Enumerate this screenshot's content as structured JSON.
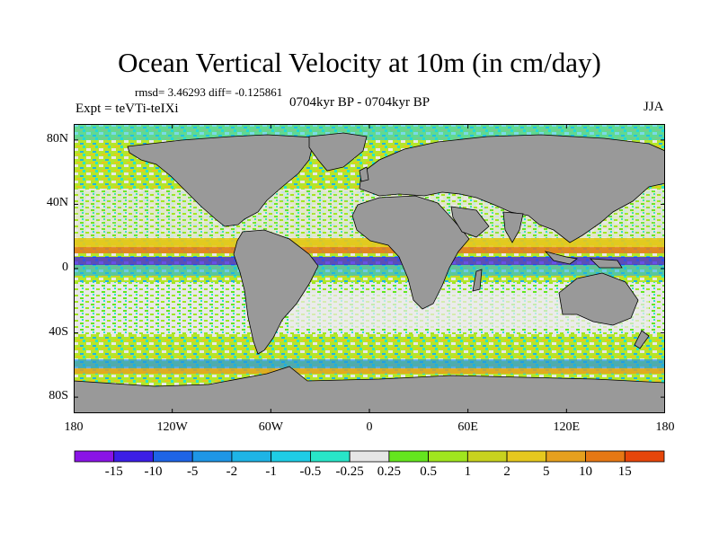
{
  "title": "Ocean Vertical Velocity at 10m (in cm/day)",
  "stats": "rmsd= 3.46293 diff= -0.125861",
  "experiment": "Expt = teVTi-teIXi",
  "period": "0704kyr BP - 0704kyr BP",
  "season": "JJA",
  "lat_ticks": [
    {
      "lat": 80,
      "label": "80N"
    },
    {
      "lat": 40,
      "label": "40N"
    },
    {
      "lat": 0,
      "label": "0"
    },
    {
      "lat": -40,
      "label": "40S"
    },
    {
      "lat": -80,
      "label": "80S"
    }
  ],
  "lon_ticks": [
    {
      "lon": -180,
      "label": "180"
    },
    {
      "lon": -120,
      "label": "120W"
    },
    {
      "lon": -60,
      "label": "60W"
    },
    {
      "lon": 0,
      "label": "0"
    },
    {
      "lon": 60,
      "label": "60E"
    },
    {
      "lon": 120,
      "label": "120E"
    },
    {
      "lon": 180,
      "label": "180"
    }
  ],
  "colorbar": {
    "colors": [
      "#8a14e6",
      "#3c1ee6",
      "#1e64e6",
      "#1e96e6",
      "#1eb4e6",
      "#1ecde6",
      "#28e6c8",
      "#e6e6e6",
      "#64e61e",
      "#a0e61e",
      "#c8d21e",
      "#e6c81e",
      "#e6a01e",
      "#e67814",
      "#e6460a"
    ],
    "labels": [
      "-15",
      "-10",
      "-5",
      "-2",
      "-1",
      "-0.5",
      "-0.25",
      "0.25",
      "0.5",
      "1",
      "2",
      "5",
      "10",
      "15"
    ]
  },
  "colors": {
    "land": "#999999",
    "coast": "#000000",
    "neutral": "#ededed"
  }
}
